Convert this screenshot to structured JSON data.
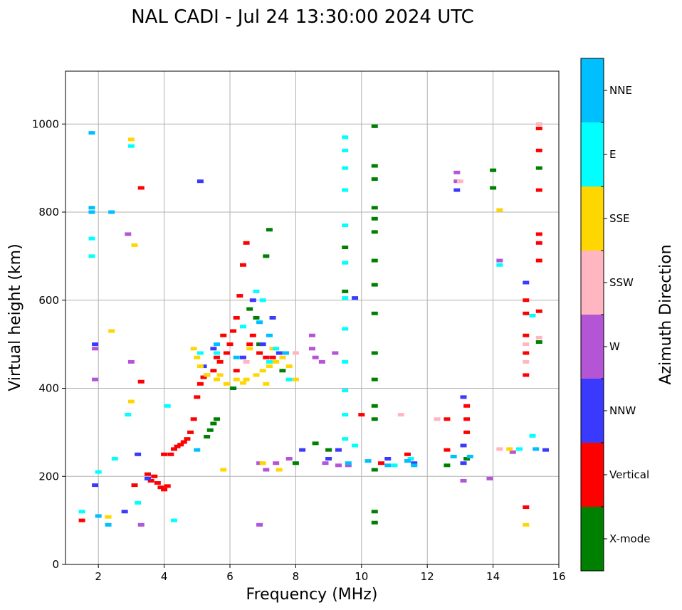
{
  "chart_data": {
    "type": "scatter",
    "title": "NAL CADI - Jul 24 13:30:00 2024 UTC",
    "xlabel": "Frequency (MHz)",
    "ylabel": "Virtual height (km)",
    "xlim": [
      1,
      16
    ],
    "ylim": [
      0,
      1120
    ],
    "xticks": [
      2,
      4,
      6,
      8,
      10,
      12,
      14,
      16
    ],
    "yticks": [
      0,
      200,
      400,
      600,
      800,
      1000
    ],
    "grid": true,
    "colorbar": {
      "title": "Azimuth Direction",
      "categories": [
        {
          "name": "X-mode",
          "color": "#008000"
        },
        {
          "name": "Vertical",
          "color": "#ff0000"
        },
        {
          "name": "NNW",
          "color": "#3a3aff"
        },
        {
          "name": "W",
          "color": "#b455d6"
        },
        {
          "name": "SSW",
          "color": "#ffb6c1"
        },
        {
          "name": "SSE",
          "color": "#ffd700"
        },
        {
          "name": "E",
          "color": "#00ffff"
        },
        {
          "name": "NNE",
          "color": "#00bfff"
        }
      ]
    },
    "series": [
      {
        "name": "Vertical",
        "points": [
          [
            1.5,
            100
          ],
          [
            3.5,
            205
          ],
          [
            3.6,
            190
          ],
          [
            3.7,
            200
          ],
          [
            3.8,
            185
          ],
          [
            3.9,
            175
          ],
          [
            4.0,
            170
          ],
          [
            4.1,
            178
          ],
          [
            4.2,
            250
          ],
          [
            4.3,
            262
          ],
          [
            4.4,
            268
          ],
          [
            4.5,
            272
          ],
          [
            4.6,
            278
          ],
          [
            4.7,
            285
          ],
          [
            4.8,
            300
          ],
          [
            4.9,
            330
          ],
          [
            5.0,
            380
          ],
          [
            5.1,
            410
          ],
          [
            5.2,
            425
          ],
          [
            5.3,
            430
          ],
          [
            5.5,
            440
          ],
          [
            5.7,
            460
          ],
          [
            5.9,
            480
          ],
          [
            6.0,
            500
          ],
          [
            6.1,
            530
          ],
          [
            6.2,
            560
          ],
          [
            6.3,
            610
          ],
          [
            6.4,
            680
          ],
          [
            6.5,
            730
          ],
          [
            6.7,
            520
          ],
          [
            6.9,
            480
          ],
          [
            7.1,
            470
          ],
          [
            7.3,
            470
          ],
          [
            10.0,
            340
          ],
          [
            10.6,
            230
          ],
          [
            11.4,
            250
          ],
          [
            12.6,
            260
          ],
          [
            13.2,
            330
          ],
          [
            13.2,
            360
          ],
          [
            13.2,
            300
          ],
          [
            15.0,
            600
          ],
          [
            15.0,
            570
          ],
          [
            15.0,
            520
          ],
          [
            15.0,
            480
          ],
          [
            15.0,
            430
          ],
          [
            15.0,
            130
          ],
          [
            15.4,
            990
          ],
          [
            15.4,
            940
          ],
          [
            15.4,
            850
          ],
          [
            15.4,
            750
          ],
          [
            15.4,
            730
          ],
          [
            15.4,
            690
          ],
          [
            15.4,
            575
          ],
          [
            5.6,
            470
          ],
          [
            6.2,
            440
          ],
          [
            5.8,
            520
          ],
          [
            6.6,
            500
          ],
          [
            4.0,
            250
          ],
          [
            12.6,
            330
          ],
          [
            3.3,
            855
          ],
          [
            3.3,
            415
          ],
          [
            3.1,
            180
          ]
        ]
      },
      {
        "name": "X-mode",
        "points": [
          [
            5.3,
            290
          ],
          [
            5.4,
            305
          ],
          [
            5.5,
            320
          ],
          [
            5.6,
            330
          ],
          [
            6.1,
            400
          ],
          [
            6.6,
            580
          ],
          [
            6.8,
            560
          ],
          [
            7.1,
            700
          ],
          [
            7.2,
            760
          ],
          [
            6.9,
            500
          ],
          [
            8.0,
            230
          ],
          [
            8.6,
            275
          ],
          [
            9.0,
            260
          ],
          [
            10.4,
            995
          ],
          [
            10.4,
            905
          ],
          [
            10.4,
            875
          ],
          [
            10.4,
            810
          ],
          [
            10.4,
            785
          ],
          [
            10.4,
            755
          ],
          [
            10.4,
            690
          ],
          [
            10.4,
            635
          ],
          [
            10.4,
            570
          ],
          [
            10.4,
            480
          ],
          [
            10.4,
            420
          ],
          [
            10.4,
            360
          ],
          [
            10.4,
            330
          ],
          [
            10.4,
            215
          ],
          [
            10.4,
            120
          ],
          [
            10.4,
            95
          ],
          [
            14.0,
            855
          ],
          [
            14.0,
            895
          ],
          [
            13.2,
            240
          ],
          [
            15.4,
            900
          ],
          [
            15.4,
            505
          ],
          [
            12.6,
            225
          ],
          [
            7.6,
            440
          ],
          [
            9.5,
            720
          ],
          [
            9.5,
            620
          ]
        ]
      },
      {
        "name": "NNW",
        "points": [
          [
            5.1,
            870
          ],
          [
            5.2,
            450
          ],
          [
            6.4,
            470
          ],
          [
            7.0,
            500
          ],
          [
            7.3,
            560
          ],
          [
            7.5,
            480
          ],
          [
            8.2,
            260
          ],
          [
            9.0,
            240
          ],
          [
            9.3,
            260
          ],
          [
            9.8,
            605
          ],
          [
            10.8,
            240
          ],
          [
            11.6,
            230
          ],
          [
            13.1,
            380
          ],
          [
            13.1,
            270
          ],
          [
            13.1,
            230
          ],
          [
            12.9,
            850
          ],
          [
            15.6,
            260
          ],
          [
            15.0,
            640
          ],
          [
            5.5,
            490
          ],
          [
            6.7,
            600
          ],
          [
            3.5,
            195
          ],
          [
            3.2,
            250
          ],
          [
            2.8,
            120
          ],
          [
            1.9,
            500
          ],
          [
            1.9,
            180
          ]
        ]
      },
      {
        "name": "W",
        "points": [
          [
            1.9,
            490
          ],
          [
            1.9,
            420
          ],
          [
            3.0,
            460
          ],
          [
            7.4,
            230
          ],
          [
            7.8,
            240
          ],
          [
            8.5,
            520
          ],
          [
            8.5,
            490
          ],
          [
            8.6,
            470
          ],
          [
            8.8,
            460
          ],
          [
            9.2,
            480
          ],
          [
            8.9,
            230
          ],
          [
            9.3,
            225
          ],
          [
            9.6,
            225
          ],
          [
            12.9,
            890
          ],
          [
            12.9,
            870
          ],
          [
            13.1,
            190
          ],
          [
            13.9,
            195
          ],
          [
            14.2,
            690
          ],
          [
            14.6,
            255
          ],
          [
            6.9,
            230
          ],
          [
            7.1,
            215
          ],
          [
            3.3,
            90
          ],
          [
            6.9,
            90
          ],
          [
            2.9,
            750
          ]
        ]
      },
      {
        "name": "SSW",
        "points": [
          [
            11.2,
            340
          ],
          [
            12.3,
            330
          ],
          [
            13.0,
            870
          ],
          [
            14.2,
            262
          ],
          [
            15.0,
            460
          ],
          [
            15.0,
            500
          ],
          [
            15.4,
            515
          ],
          [
            15.4,
            1000
          ],
          [
            8.0,
            480
          ],
          [
            6.5,
            460
          ]
        ]
      },
      {
        "name": "SSE",
        "points": [
          [
            2.4,
            530
          ],
          [
            3.0,
            370
          ],
          [
            3.1,
            725
          ],
          [
            4.9,
            490
          ],
          [
            5.0,
            470
          ],
          [
            5.1,
            450
          ],
          [
            5.3,
            430
          ],
          [
            5.6,
            420
          ],
          [
            5.9,
            410
          ],
          [
            6.2,
            420
          ],
          [
            6.5,
            420
          ],
          [
            6.8,
            430
          ],
          [
            7.0,
            440
          ],
          [
            7.2,
            450
          ],
          [
            7.4,
            460
          ],
          [
            7.6,
            470
          ],
          [
            7.8,
            450
          ],
          [
            8.0,
            420
          ],
          [
            7.1,
            410
          ],
          [
            6.4,
            412
          ],
          [
            5.7,
            430
          ],
          [
            6.6,
            490
          ],
          [
            7.3,
            490
          ],
          [
            14.2,
            805
          ],
          [
            14.5,
            262
          ],
          [
            15.0,
            90
          ],
          [
            5.8,
            215
          ],
          [
            7.5,
            215
          ],
          [
            7.0,
            230
          ],
          [
            2.3,
            108
          ],
          [
            3.0,
            965
          ]
        ]
      },
      {
        "name": "E",
        "points": [
          [
            1.5,
            120
          ],
          [
            1.8,
            700
          ],
          [
            1.8,
            740
          ],
          [
            2.9,
            340
          ],
          [
            3.2,
            140
          ],
          [
            4.1,
            360
          ],
          [
            4.3,
            100
          ],
          [
            5.1,
            480
          ],
          [
            5.6,
            480
          ],
          [
            6.4,
            540
          ],
          [
            6.8,
            620
          ],
          [
            7.0,
            600
          ],
          [
            7.2,
            460
          ],
          [
            7.4,
            490
          ],
          [
            7.8,
            420
          ],
          [
            9.5,
            970
          ],
          [
            9.5,
            940
          ],
          [
            9.5,
            900
          ],
          [
            9.5,
            850
          ],
          [
            9.5,
            770
          ],
          [
            9.5,
            685
          ],
          [
            9.5,
            605
          ],
          [
            9.5,
            535
          ],
          [
            9.5,
            460
          ],
          [
            9.5,
            395
          ],
          [
            9.5,
            340
          ],
          [
            9.5,
            285
          ],
          [
            9.8,
            270
          ],
          [
            11.0,
            225
          ],
          [
            11.5,
            240
          ],
          [
            14.2,
            680
          ],
          [
            14.8,
            262
          ],
          [
            15.2,
            565
          ],
          [
            15.2,
            292
          ],
          [
            2.0,
            210
          ],
          [
            3.0,
            950
          ],
          [
            2.5,
            240
          ]
        ]
      },
      {
        "name": "NNE",
        "points": [
          [
            1.8,
            980
          ],
          [
            1.8,
            800
          ],
          [
            1.8,
            810
          ],
          [
            2.4,
            800
          ],
          [
            2.0,
            110
          ],
          [
            2.3,
            90
          ],
          [
            5.0,
            260
          ],
          [
            5.6,
            500
          ],
          [
            6.2,
            470
          ],
          [
            6.9,
            550
          ],
          [
            7.2,
            520
          ],
          [
            7.7,
            480
          ],
          [
            9.6,
            230
          ],
          [
            10.2,
            235
          ],
          [
            10.8,
            225
          ],
          [
            11.4,
            235
          ],
          [
            11.6,
            225
          ],
          [
            12.8,
            245
          ],
          [
            15.3,
            262
          ],
          [
            13.3,
            245
          ]
        ]
      }
    ]
  }
}
